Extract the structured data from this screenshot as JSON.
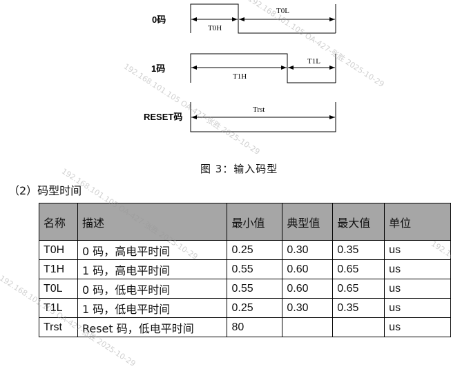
{
  "diagram": {
    "rows": [
      {
        "label": "0码",
        "high_label": "T0H",
        "low_label": "T0L"
      },
      {
        "label": "1码",
        "high_label": "T1H",
        "low_label": "T1L"
      },
      {
        "label": "RESET码",
        "low_label": "Trst"
      }
    ],
    "caption": "图 3：输入码型"
  },
  "section_title": "（2）码型时间",
  "table": {
    "headers": [
      "名称",
      "描述",
      "最小值",
      "典型值",
      "最大值",
      "单位"
    ],
    "rows": [
      [
        "T0H",
        "0 码，高电平时间",
        "0.25",
        "0.30",
        "0.35",
        "us"
      ],
      [
        "T1H",
        "1 码，高电平时间",
        "0.55",
        "0.60",
        "0.65",
        "us"
      ],
      [
        "T0L",
        "0 码，低电平时间",
        "0.55",
        "0.60",
        "0.65",
        "us"
      ],
      [
        "T1L",
        "1 码，低电平时间",
        "0.25",
        "0.30",
        "0.35",
        "us"
      ],
      [
        "Trst",
        "Reset 码，低电平时间",
        "80",
        "",
        "",
        "us"
      ]
    ]
  },
  "watermark": "192.168.101.105  OA-427-张胜  2025-10-29"
}
